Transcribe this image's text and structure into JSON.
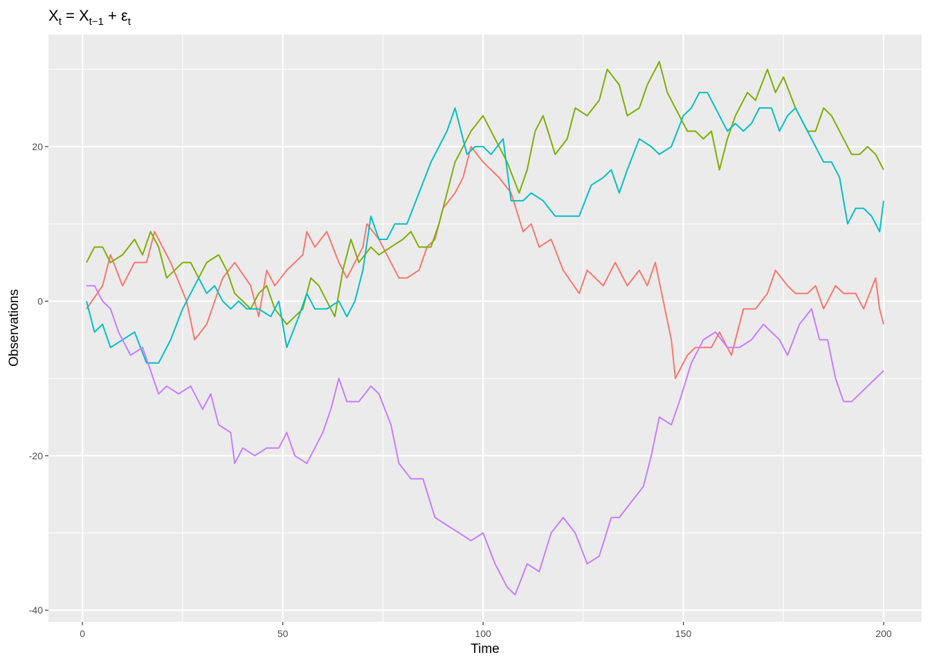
{
  "chart_data": {
    "type": "line",
    "title": {
      "X1": "X",
      "s1": "t",
      "eq": " = ",
      "X2": "X",
      "s2": "t−1",
      "plus": " + ",
      "eps": "ε",
      "s3": "t"
    },
    "xlabel": "Time",
    "ylabel": "Observations",
    "xlim": [
      -8.5,
      209.5
    ],
    "ylim": [
      -41.5,
      34.5
    ],
    "x_ticks": [
      0,
      50,
      100,
      150,
      200
    ],
    "x_tick_labels": [
      "0",
      "50",
      "100",
      "150",
      "200"
    ],
    "x_minor": [
      25,
      75,
      125,
      175
    ],
    "y_ticks": [
      -40,
      -20,
      0,
      20
    ],
    "y_tick_labels": [
      "-40",
      "-20",
      "0",
      "20"
    ],
    "y_minor": [
      -30,
      -10,
      10,
      30
    ],
    "grid": true,
    "legend": "none",
    "colors": {
      "panel_bg": "#ebebeb",
      "grid": "#ffffff",
      "series": [
        "#F8766D",
        "#7CAE00",
        "#00BFC4",
        "#C77CFF"
      ]
    },
    "series": [
      {
        "color": "#F8766D",
        "points": [
          [
            1,
            -1
          ],
          [
            5,
            2
          ],
          [
            7,
            6
          ],
          [
            10,
            2
          ],
          [
            13,
            5
          ],
          [
            16,
            5
          ],
          [
            18,
            9
          ],
          [
            22,
            5
          ],
          [
            26,
            0
          ],
          [
            28,
            -5
          ],
          [
            31,
            -3
          ],
          [
            35,
            3
          ],
          [
            38,
            5
          ],
          [
            42,
            2
          ],
          [
            44,
            -2
          ],
          [
            46,
            4
          ],
          [
            48,
            2
          ],
          [
            51,
            4
          ],
          [
            55,
            6
          ],
          [
            56,
            9
          ],
          [
            58,
            7
          ],
          [
            61,
            9
          ],
          [
            64,
            5
          ],
          [
            66,
            3
          ],
          [
            70,
            7
          ],
          [
            71,
            10
          ],
          [
            74,
            8
          ],
          [
            76,
            6
          ],
          [
            79,
            3
          ],
          [
            81,
            3
          ],
          [
            84,
            4
          ],
          [
            86,
            7
          ],
          [
            88,
            8
          ],
          [
            90,
            12
          ],
          [
            93,
            14
          ],
          [
            95,
            16
          ],
          [
            97,
            20
          ],
          [
            100,
            18
          ],
          [
            104,
            16
          ],
          [
            107,
            14
          ],
          [
            110,
            9
          ],
          [
            112,
            10
          ],
          [
            114,
            7
          ],
          [
            117,
            8
          ],
          [
            120,
            4
          ],
          [
            124,
            1
          ],
          [
            126,
            4
          ],
          [
            130,
            2
          ],
          [
            133,
            5
          ],
          [
            136,
            2
          ],
          [
            139,
            4
          ],
          [
            141,
            2
          ],
          [
            143,
            5
          ],
          [
            147,
            -5
          ],
          [
            148,
            -10
          ],
          [
            151,
            -7
          ],
          [
            153,
            -6
          ],
          [
            157,
            -6
          ],
          [
            159,
            -4
          ],
          [
            162,
            -7
          ],
          [
            165,
            -1
          ],
          [
            168,
            -1
          ],
          [
            171,
            1
          ],
          [
            173,
            4
          ],
          [
            176,
            2
          ],
          [
            178,
            1
          ],
          [
            181,
            1
          ],
          [
            183,
            2
          ],
          [
            185,
            -1
          ],
          [
            188,
            2
          ],
          [
            190,
            1
          ],
          [
            193,
            1
          ],
          [
            195,
            -1
          ],
          [
            198,
            3
          ],
          [
            199,
            -1
          ],
          [
            200,
            -3
          ]
        ]
      },
      {
        "color": "#7CAE00",
        "points": [
          [
            1,
            5
          ],
          [
            3,
            7
          ],
          [
            5,
            7
          ],
          [
            7,
            5
          ],
          [
            10,
            6
          ],
          [
            13,
            8
          ],
          [
            15,
            6
          ],
          [
            17,
            9
          ],
          [
            19,
            7
          ],
          [
            21,
            3
          ],
          [
            23,
            4
          ],
          [
            25,
            5
          ],
          [
            27,
            5
          ],
          [
            29,
            3
          ],
          [
            31,
            5
          ],
          [
            34,
            6
          ],
          [
            36,
            4
          ],
          [
            38,
            1
          ],
          [
            40,
            0
          ],
          [
            42,
            -1
          ],
          [
            44,
            1
          ],
          [
            46,
            2
          ],
          [
            48,
            -1
          ],
          [
            51,
            -3
          ],
          [
            53,
            -2
          ],
          [
            55,
            -1
          ],
          [
            57,
            3
          ],
          [
            59,
            2
          ],
          [
            61,
            0
          ],
          [
            63,
            -2
          ],
          [
            65,
            4
          ],
          [
            67,
            8
          ],
          [
            69,
            5
          ],
          [
            72,
            7
          ],
          [
            74,
            6
          ],
          [
            77,
            7
          ],
          [
            80,
            8
          ],
          [
            82,
            9
          ],
          [
            84,
            7
          ],
          [
            87,
            7
          ],
          [
            89,
            10
          ],
          [
            91,
            14
          ],
          [
            93,
            18
          ],
          [
            95,
            20
          ],
          [
            97,
            22
          ],
          [
            100,
            24
          ],
          [
            103,
            21
          ],
          [
            106,
            18
          ],
          [
            109,
            14
          ],
          [
            111,
            17
          ],
          [
            113,
            22
          ],
          [
            115,
            24
          ],
          [
            118,
            19
          ],
          [
            121,
            21
          ],
          [
            123,
            25
          ],
          [
            126,
            24
          ],
          [
            129,
            26
          ],
          [
            131,
            30
          ],
          [
            134,
            28
          ],
          [
            136,
            24
          ],
          [
            139,
            25
          ],
          [
            141,
            28
          ],
          [
            144,
            31
          ],
          [
            146,
            27
          ],
          [
            149,
            24
          ],
          [
            151,
            22
          ],
          [
            153,
            22
          ],
          [
            155,
            21
          ],
          [
            157,
            22
          ],
          [
            159,
            17
          ],
          [
            161,
            21
          ],
          [
            163,
            24
          ],
          [
            166,
            27
          ],
          [
            168,
            26
          ],
          [
            171,
            30
          ],
          [
            173,
            27
          ],
          [
            175,
            29
          ],
          [
            178,
            25
          ],
          [
            181,
            22
          ],
          [
            183,
            22
          ],
          [
            185,
            25
          ],
          [
            187,
            24
          ],
          [
            190,
            21
          ],
          [
            192,
            19
          ],
          [
            194,
            19
          ],
          [
            196,
            20
          ],
          [
            198,
            19
          ],
          [
            200,
            17
          ]
        ]
      },
      {
        "color": "#00BFC4",
        "points": [
          [
            1,
            0
          ],
          [
            3,
            -4
          ],
          [
            5,
            -3
          ],
          [
            7,
            -6
          ],
          [
            10,
            -5
          ],
          [
            13,
            -4
          ],
          [
            16,
            -8
          ],
          [
            19,
            -8
          ],
          [
            22,
            -5
          ],
          [
            25,
            -1
          ],
          [
            27,
            1
          ],
          [
            29,
            3
          ],
          [
            31,
            1
          ],
          [
            33,
            2
          ],
          [
            35,
            0
          ],
          [
            37,
            -1
          ],
          [
            39,
            0
          ],
          [
            41,
            -1
          ],
          [
            44,
            -1
          ],
          [
            47,
            -2
          ],
          [
            49,
            0
          ],
          [
            51,
            -6
          ],
          [
            54,
            -2
          ],
          [
            56,
            1
          ],
          [
            58,
            -1
          ],
          [
            61,
            -1
          ],
          [
            64,
            0
          ],
          [
            66,
            -2
          ],
          [
            68,
            0
          ],
          [
            70,
            4
          ],
          [
            72,
            11
          ],
          [
            74,
            8
          ],
          [
            76,
            8
          ],
          [
            78,
            10
          ],
          [
            81,
            10
          ],
          [
            84,
            14
          ],
          [
            87,
            18
          ],
          [
            89,
            20
          ],
          [
            91,
            22
          ],
          [
            93,
            25
          ],
          [
            96,
            19
          ],
          [
            98,
            20
          ],
          [
            100,
            20
          ],
          [
            102,
            19
          ],
          [
            105,
            21
          ],
          [
            107,
            13
          ],
          [
            110,
            13
          ],
          [
            112,
            14
          ],
          [
            115,
            13
          ],
          [
            118,
            11
          ],
          [
            121,
            11
          ],
          [
            124,
            11
          ],
          [
            127,
            15
          ],
          [
            130,
            16
          ],
          [
            132,
            17
          ],
          [
            134,
            14
          ],
          [
            136,
            17
          ],
          [
            139,
            21
          ],
          [
            142,
            20
          ],
          [
            144,
            19
          ],
          [
            147,
            20
          ],
          [
            150,
            24
          ],
          [
            152,
            25
          ],
          [
            154,
            27
          ],
          [
            156,
            27
          ],
          [
            158,
            25
          ],
          [
            161,
            22
          ],
          [
            163,
            23
          ],
          [
            165,
            22
          ],
          [
            167,
            23
          ],
          [
            169,
            25
          ],
          [
            172,
            25
          ],
          [
            174,
            22
          ],
          [
            176,
            24
          ],
          [
            178,
            25
          ],
          [
            180,
            23
          ],
          [
            183,
            20
          ],
          [
            185,
            18
          ],
          [
            187,
            18
          ],
          [
            189,
            16
          ],
          [
            191,
            10
          ],
          [
            193,
            12
          ],
          [
            195,
            12
          ],
          [
            197,
            11
          ],
          [
            199,
            9
          ],
          [
            200,
            13
          ]
        ]
      },
      {
        "color": "#C77CFF",
        "points": [
          [
            1,
            2
          ],
          [
            3,
            2
          ],
          [
            5,
            0
          ],
          [
            7,
            -1
          ],
          [
            9,
            -4
          ],
          [
            12,
            -7
          ],
          [
            15,
            -6
          ],
          [
            17,
            -9
          ],
          [
            19,
            -12
          ],
          [
            21,
            -11
          ],
          [
            24,
            -12
          ],
          [
            27,
            -11
          ],
          [
            30,
            -14
          ],
          [
            32,
            -12
          ],
          [
            34,
            -16
          ],
          [
            37,
            -17
          ],
          [
            38,
            -21
          ],
          [
            40,
            -19
          ],
          [
            43,
            -20
          ],
          [
            46,
            -19
          ],
          [
            49,
            -19
          ],
          [
            51,
            -17
          ],
          [
            53,
            -20
          ],
          [
            56,
            -21
          ],
          [
            58,
            -19
          ],
          [
            60,
            -17
          ],
          [
            62,
            -14
          ],
          [
            64,
            -10
          ],
          [
            66,
            -13
          ],
          [
            69,
            -13
          ],
          [
            72,
            -11
          ],
          [
            74,
            -12
          ],
          [
            77,
            -16
          ],
          [
            79,
            -21
          ],
          [
            82,
            -23
          ],
          [
            85,
            -23
          ],
          [
            88,
            -28
          ],
          [
            91,
            -29
          ],
          [
            94,
            -30
          ],
          [
            97,
            -31
          ],
          [
            100,
            -30
          ],
          [
            103,
            -34
          ],
          [
            106,
            -37
          ],
          [
            108,
            -38
          ],
          [
            111,
            -34
          ],
          [
            114,
            -35
          ],
          [
            117,
            -30
          ],
          [
            120,
            -28
          ],
          [
            123,
            -30
          ],
          [
            126,
            -34
          ],
          [
            129,
            -33
          ],
          [
            132,
            -28
          ],
          [
            134,
            -28
          ],
          [
            137,
            -26
          ],
          [
            140,
            -24
          ],
          [
            142,
            -20
          ],
          [
            144,
            -15
          ],
          [
            147,
            -16
          ],
          [
            149,
            -13
          ],
          [
            152,
            -8
          ],
          [
            155,
            -5
          ],
          [
            158,
            -4
          ],
          [
            161,
            -6
          ],
          [
            164,
            -6
          ],
          [
            167,
            -5
          ],
          [
            170,
            -3
          ],
          [
            172,
            -4
          ],
          [
            174,
            -5
          ],
          [
            176,
            -7
          ],
          [
            179,
            -3
          ],
          [
            182,
            -1
          ],
          [
            184,
            -5
          ],
          [
            186,
            -5
          ],
          [
            188,
            -10
          ],
          [
            190,
            -13
          ],
          [
            192,
            -13
          ],
          [
            194,
            -12
          ],
          [
            196,
            -11
          ],
          [
            198,
            -10
          ],
          [
            200,
            -9
          ]
        ]
      }
    ]
  }
}
